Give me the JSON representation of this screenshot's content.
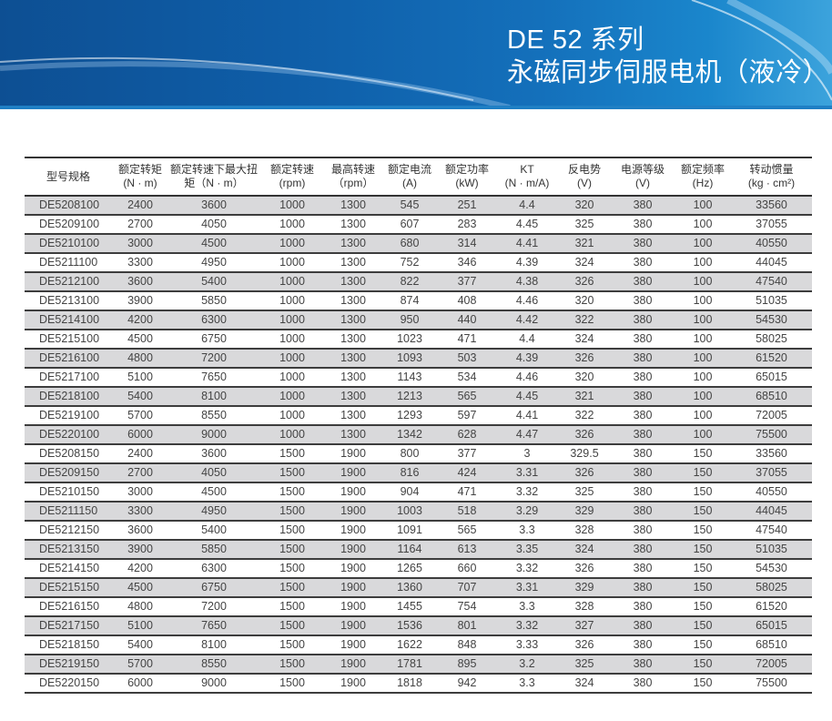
{
  "header": {
    "title_line1": "DE 52 系列",
    "title_line2": "永磁同步伺服电机（液冷）",
    "brand_color": "#0f5ea8"
  },
  "table": {
    "columns": [
      {
        "l1": "型号规格",
        "l2": ""
      },
      {
        "l1": "额定转矩",
        "l2": "(N · m)"
      },
      {
        "l1": "额定转速下最大扭",
        "l2": "矩（N · m）"
      },
      {
        "l1": "额定转速",
        "l2": "(rpm)"
      },
      {
        "l1": "最高转速",
        "l2": "（rpm）"
      },
      {
        "l1": "额定电流",
        "l2": "(A)"
      },
      {
        "l1": "额定功率",
        "l2": "(kW)"
      },
      {
        "l1": "KT",
        "l2": "(N · m/A)"
      },
      {
        "l1": "反电势",
        "l2": "(V)"
      },
      {
        "l1": "电源等级",
        "l2": "(V)"
      },
      {
        "l1": "额定频率",
        "l2": "(Hz)"
      },
      {
        "l1": "转动惯量",
        "l2": "(kg · cm²)"
      }
    ],
    "rows": [
      [
        "DE5208100",
        "2400",
        "3600",
        "1000",
        "1300",
        "545",
        "251",
        "4.4",
        "320",
        "380",
        "100",
        "33560"
      ],
      [
        "DE5209100",
        "2700",
        "4050",
        "1000",
        "1300",
        "607",
        "283",
        "4.45",
        "325",
        "380",
        "100",
        "37055"
      ],
      [
        "DE5210100",
        "3000",
        "4500",
        "1000",
        "1300",
        "680",
        "314",
        "4.41",
        "321",
        "380",
        "100",
        "40550"
      ],
      [
        "DE5211100",
        "3300",
        "4950",
        "1000",
        "1300",
        "752",
        "346",
        "4.39",
        "324",
        "380",
        "100",
        "44045"
      ],
      [
        "DE5212100",
        "3600",
        "5400",
        "1000",
        "1300",
        "822",
        "377",
        "4.38",
        "326",
        "380",
        "100",
        "47540"
      ],
      [
        "DE5213100",
        "3900",
        "5850",
        "1000",
        "1300",
        "874",
        "408",
        "4.46",
        "320",
        "380",
        "100",
        "51035"
      ],
      [
        "DE5214100",
        "4200",
        "6300",
        "1000",
        "1300",
        "950",
        "440",
        "4.42",
        "322",
        "380",
        "100",
        "54530"
      ],
      [
        "DE5215100",
        "4500",
        "6750",
        "1000",
        "1300",
        "1023",
        "471",
        "4.4",
        "324",
        "380",
        "100",
        "58025"
      ],
      [
        "DE5216100",
        "4800",
        "7200",
        "1000",
        "1300",
        "1093",
        "503",
        "4.39",
        "326",
        "380",
        "100",
        "61520"
      ],
      [
        "DE5217100",
        "5100",
        "7650",
        "1000",
        "1300",
        "1143",
        "534",
        "4.46",
        "320",
        "380",
        "100",
        "65015"
      ],
      [
        "DE5218100",
        "5400",
        "8100",
        "1000",
        "1300",
        "1213",
        "565",
        "4.45",
        "321",
        "380",
        "100",
        "68510"
      ],
      [
        "DE5219100",
        "5700",
        "8550",
        "1000",
        "1300",
        "1293",
        "597",
        "4.41",
        "322",
        "380",
        "100",
        "72005"
      ],
      [
        "DE5220100",
        "6000",
        "9000",
        "1000",
        "1300",
        "1342",
        "628",
        "4.47",
        "326",
        "380",
        "100",
        "75500"
      ],
      [
        "DE5208150",
        "2400",
        "3600",
        "1500",
        "1900",
        "800",
        "377",
        "3",
        "329.5",
        "380",
        "150",
        "33560"
      ],
      [
        "DE5209150",
        "2700",
        "4050",
        "1500",
        "1900",
        "816",
        "424",
        "3.31",
        "326",
        "380",
        "150",
        "37055"
      ],
      [
        "DE5210150",
        "3000",
        "4500",
        "1500",
        "1900",
        "904",
        "471",
        "3.32",
        "325",
        "380",
        "150",
        "40550"
      ],
      [
        "DE5211150",
        "3300",
        "4950",
        "1500",
        "1900",
        "1003",
        "518",
        "3.29",
        "329",
        "380",
        "150",
        "44045"
      ],
      [
        "DE5212150",
        "3600",
        "5400",
        "1500",
        "1900",
        "1091",
        "565",
        "3.3",
        "328",
        "380",
        "150",
        "47540"
      ],
      [
        "DE5213150",
        "3900",
        "5850",
        "1500",
        "1900",
        "1164",
        "613",
        "3.35",
        "324",
        "380",
        "150",
        "51035"
      ],
      [
        "DE5214150",
        "4200",
        "6300",
        "1500",
        "1900",
        "1265",
        "660",
        "3.32",
        "326",
        "380",
        "150",
        "54530"
      ],
      [
        "DE5215150",
        "4500",
        "6750",
        "1500",
        "1900",
        "1360",
        "707",
        "3.31",
        "329",
        "380",
        "150",
        "58025"
      ],
      [
        "DE5216150",
        "4800",
        "7200",
        "1500",
        "1900",
        "1455",
        "754",
        "3.3",
        "328",
        "380",
        "150",
        "61520"
      ],
      [
        "DE5217150",
        "5100",
        "7650",
        "1500",
        "1900",
        "1536",
        "801",
        "3.32",
        "327",
        "380",
        "150",
        "65015"
      ],
      [
        "DE5218150",
        "5400",
        "8100",
        "1500",
        "1900",
        "1622",
        "848",
        "3.33",
        "326",
        "380",
        "150",
        "68510"
      ],
      [
        "DE5219150",
        "5700",
        "8550",
        "1500",
        "1900",
        "1781",
        "895",
        "3.2",
        "325",
        "380",
        "150",
        "72005"
      ],
      [
        "DE5220150",
        "6000",
        "9000",
        "1500",
        "1900",
        "1818",
        "942",
        "3.3",
        "324",
        "380",
        "150",
        "75500"
      ]
    ]
  }
}
